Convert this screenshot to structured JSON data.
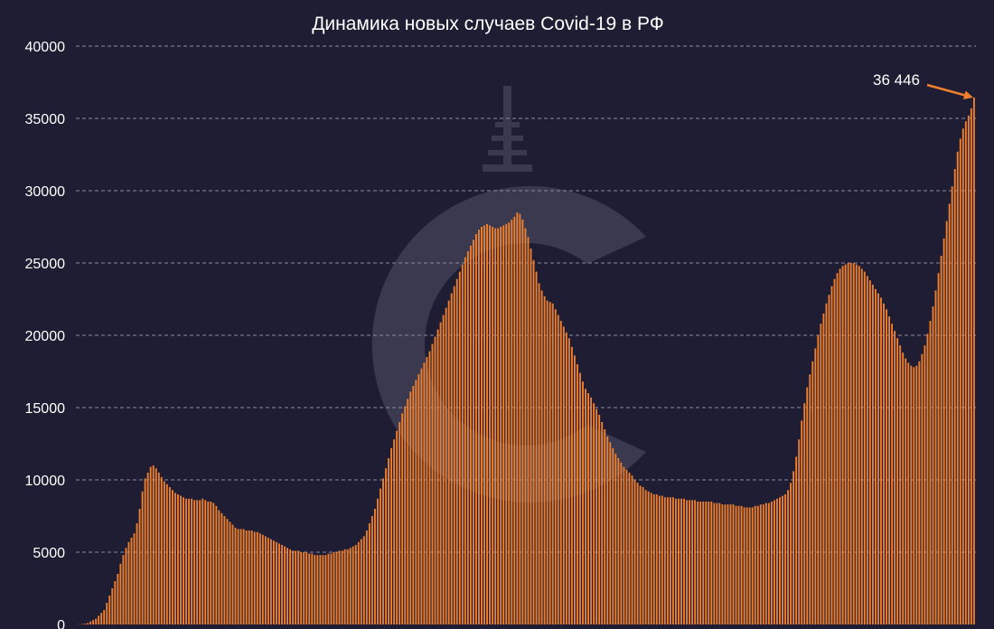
{
  "chart_data": {
    "type": "bar",
    "title": "Динамика новых случаев Covid-19 в РФ",
    "xlabel": "",
    "ylabel": "",
    "ylim": [
      0,
      40000
    ],
    "yticks": [
      0,
      5000,
      10000,
      15000,
      20000,
      25000,
      30000,
      35000,
      40000
    ],
    "yticks_labels": [
      "0",
      "5000",
      "10000",
      "15000",
      "20000",
      "25000",
      "30000",
      "35000",
      "40000"
    ],
    "grid": true,
    "legend": "none",
    "bar_color": "#f0802d",
    "background_color": "#1e1d33",
    "values": [
      3,
      15,
      30,
      60,
      100,
      200,
      300,
      400,
      600,
      800,
      1000,
      1500,
      2000,
      2500,
      3000,
      3500,
      4200,
      4800,
      5300,
      5700,
      6000,
      6300,
      7000,
      8000,
      9200,
      10100,
      10500,
      10900,
      11000,
      10800,
      10500,
      10200,
      9900,
      9700,
      9500,
      9300,
      9100,
      9000,
      8900,
      8800,
      8700,
      8700,
      8700,
      8600,
      8600,
      8600,
      8700,
      8600,
      8500,
      8500,
      8400,
      8200,
      7900,
      7700,
      7500,
      7300,
      7100,
      6900,
      6700,
      6600,
      6600,
      6600,
      6500,
      6500,
      6500,
      6400,
      6400,
      6300,
      6200,
      6100,
      6000,
      5900,
      5800,
      5700,
      5600,
      5500,
      5400,
      5300,
      5200,
      5100,
      5100,
      5100,
      5000,
      5000,
      5000,
      4900,
      4900,
      4800,
      4800,
      4800,
      4800,
      4800,
      4900,
      4900,
      5000,
      5000,
      5100,
      5100,
      5200,
      5200,
      5300,
      5400,
      5500,
      5700,
      5900,
      6100,
      6500,
      7000,
      7500,
      8000,
      8700,
      9400,
      10100,
      10800,
      11500,
      12200,
      12800,
      13400,
      14000,
      14600,
      15100,
      15600,
      16100,
      16500,
      16900,
      17300,
      17700,
      18100,
      18500,
      18900,
      19400,
      19900,
      20400,
      20900,
      21400,
      21900,
      22400,
      22900,
      23400,
      23900,
      24400,
      24900,
      25400,
      25800,
      26200,
      26600,
      27000,
      27300,
      27500,
      27600,
      27700,
      27600,
      27500,
      27400,
      27400,
      27500,
      27600,
      27700,
      27800,
      28000,
      28200,
      28500,
      28400,
      28000,
      27400,
      26800,
      26000,
      25200,
      24400,
      23600,
      23100,
      22700,
      22400,
      22300,
      22200,
      21800,
      21400,
      21000,
      20600,
      20200,
      19800,
      19200,
      18600,
      18000,
      17400,
      16800,
      16300,
      16000,
      15700,
      15300,
      14900,
      14500,
      14000,
      13500,
      13000,
      12600,
      12200,
      11800,
      11500,
      11200,
      10900,
      10700,
      10500,
      10300,
      10000,
      9800,
      9600,
      9500,
      9300,
      9200,
      9100,
      9000,
      9000,
      8900,
      8900,
      8800,
      8800,
      8800,
      8800,
      8700,
      8700,
      8700,
      8700,
      8600,
      8600,
      8600,
      8600,
      8500,
      8500,
      8500,
      8500,
      8500,
      8500,
      8400,
      8400,
      8400,
      8300,
      8300,
      8300,
      8300,
      8300,
      8200,
      8200,
      8200,
      8100,
      8100,
      8100,
      8100,
      8200,
      8200,
      8300,
      8300,
      8400,
      8400,
      8500,
      8600,
      8700,
      8800,
      8900,
      9000,
      9300,
      9800,
      10600,
      11600,
      12800,
      14100,
      15300,
      16400,
      17300,
      18200,
      19100,
      20000,
      20800,
      21500,
      22200,
      22800,
      23400,
      23900,
      24300,
      24600,
      24800,
      24900,
      25000,
      25000,
      25000,
      24900,
      24800,
      24600,
      24400,
      24100,
      23800,
      23500,
      23200,
      22900,
      22600,
      22200,
      21800,
      21300,
      20800,
      20300,
      19800,
      19300,
      18800,
      18400,
      18100,
      17900,
      17800,
      17900,
      18200,
      18700,
      19300,
      20100,
      21000,
      22000,
      23100,
      24300,
      25500,
      26700,
      27900,
      29100,
      30300,
      31500,
      32700,
      33600,
      34300,
      34800,
      35200,
      35700,
      36446
    ],
    "annotations": [
      {
        "text": "36 446",
        "value": 36446,
        "index": "last"
      }
    ]
  },
  "annotation_color": "#f0802d",
  "grid_color": "#8d8ca3",
  "watermark": "c-logo"
}
